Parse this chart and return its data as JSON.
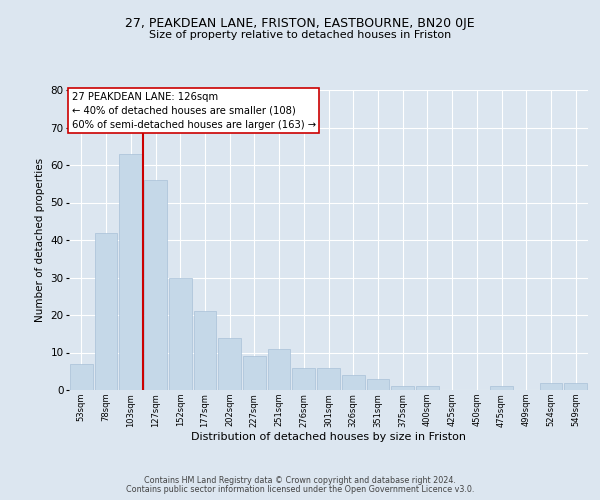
{
  "title": "27, PEAKDEAN LANE, FRISTON, EASTBOURNE, BN20 0JE",
  "subtitle": "Size of property relative to detached houses in Friston",
  "xlabel": "Distribution of detached houses by size in Friston",
  "ylabel": "Number of detached properties",
  "categories": [
    "53sqm",
    "78sqm",
    "103sqm",
    "127sqm",
    "152sqm",
    "177sqm",
    "202sqm",
    "227sqm",
    "251sqm",
    "276sqm",
    "301sqm",
    "326sqm",
    "351sqm",
    "375sqm",
    "400sqm",
    "425sqm",
    "450sqm",
    "475sqm",
    "499sqm",
    "524sqm",
    "549sqm"
  ],
  "values": [
    7,
    42,
    63,
    56,
    30,
    21,
    14,
    9,
    11,
    6,
    6,
    4,
    3,
    1,
    1,
    0,
    0,
    1,
    0,
    2,
    2
  ],
  "bar_color": "#c5d8e8",
  "bar_edge_color": "#a8c0d8",
  "vline_color": "#cc0000",
  "annotation_title": "27 PEAKDEAN LANE: 126sqm",
  "annotation_line2": "← 40% of detached houses are smaller (108)",
  "annotation_line3": "60% of semi-detached houses are larger (163) →",
  "annotation_box_color": "#ffffff",
  "annotation_box_edge": "#cc0000",
  "ylim": [
    0,
    80
  ],
  "yticks": [
    0,
    10,
    20,
    30,
    40,
    50,
    60,
    70,
    80
  ],
  "fig_bg_color": "#dce6f0",
  "plot_bg_color": "#dce6f0",
  "grid_color": "#ffffff",
  "footer1": "Contains HM Land Registry data © Crown copyright and database right 2024.",
  "footer2": "Contains public sector information licensed under the Open Government Licence v3.0."
}
